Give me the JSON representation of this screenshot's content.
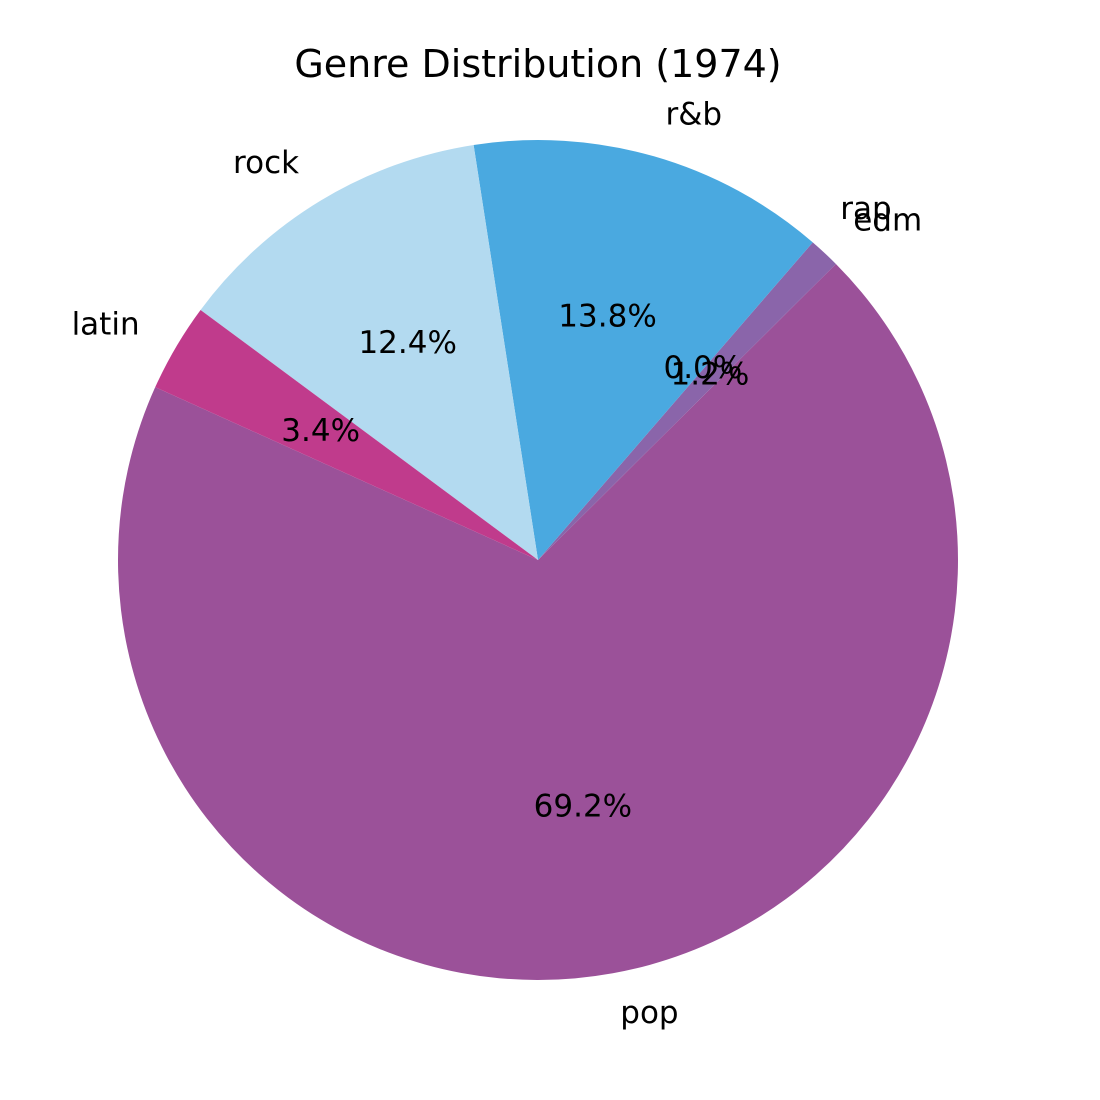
{
  "chart_data": {
    "type": "pie",
    "title": "Genre Distribution (1974)",
    "slices": [
      {
        "label": "pop",
        "pct_label": "69.2%",
        "value": 69.2,
        "color": "#9b5199"
      },
      {
        "label": "edm",
        "pct_label": "1.2%",
        "value": 1.2,
        "color": "#8a65aa"
      },
      {
        "label": "rap",
        "pct_label": "0.0%",
        "value": 0.0,
        "color": "#9b5199"
      },
      {
        "label": "r&b",
        "pct_label": "13.8%",
        "value": 13.8,
        "color": "#4aa9e0"
      },
      {
        "label": "rock",
        "pct_label": "12.4%",
        "value": 12.4,
        "color": "#b3daf0"
      },
      {
        "label": "latin",
        "pct_label": "3.4%",
        "value": 3.4,
        "color": "#c03b8c"
      }
    ]
  }
}
